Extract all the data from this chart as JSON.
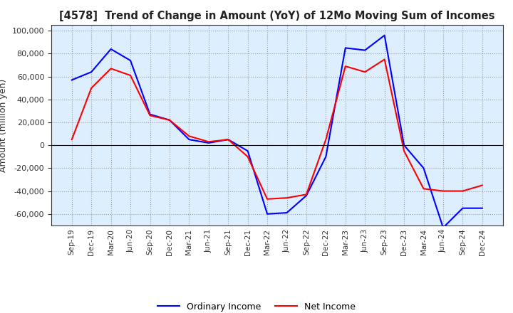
{
  "title": "[4578]  Trend of Change in Amount (YoY) of 12Mo Moving Sum of Incomes",
  "ylabel": "Amount (million yen)",
  "x_labels": [
    "Sep-19",
    "Dec-19",
    "Mar-20",
    "Jun-20",
    "Sep-20",
    "Dec-20",
    "Mar-21",
    "Jun-21",
    "Sep-21",
    "Dec-21",
    "Mar-22",
    "Jun-22",
    "Sep-22",
    "Dec-22",
    "Mar-23",
    "Jun-23",
    "Sep-23",
    "Dec-23",
    "Mar-24",
    "Jun-24",
    "Sep-24",
    "Dec-24"
  ],
  "ordinary_income": [
    57000,
    64000,
    84000,
    74000,
    27000,
    22000,
    5000,
    2000,
    5000,
    -5000,
    -60000,
    -59000,
    -44000,
    -10000,
    85000,
    83000,
    96000,
    0,
    -20000,
    -72000,
    -55000,
    -55000
  ],
  "net_income": [
    5000,
    50000,
    67000,
    61000,
    26000,
    22000,
    8000,
    3000,
    5000,
    -10000,
    -47000,
    -46000,
    -43000,
    5000,
    69000,
    64000,
    75000,
    -5000,
    -38000,
    -40000,
    -40000,
    -35000
  ],
  "ordinary_color": "#0000ff",
  "net_color": "#ff0000",
  "ylim": [
    -70000,
    105000
  ],
  "yticks": [
    -60000,
    -40000,
    -20000,
    0,
    20000,
    40000,
    60000,
    80000,
    100000
  ],
  "background_color": "#ffffff",
  "plot_bg_color": "#ddeeff",
  "grid_color": "#aaaaaa",
  "legend_labels": [
    "Ordinary Income",
    "Net Income"
  ]
}
